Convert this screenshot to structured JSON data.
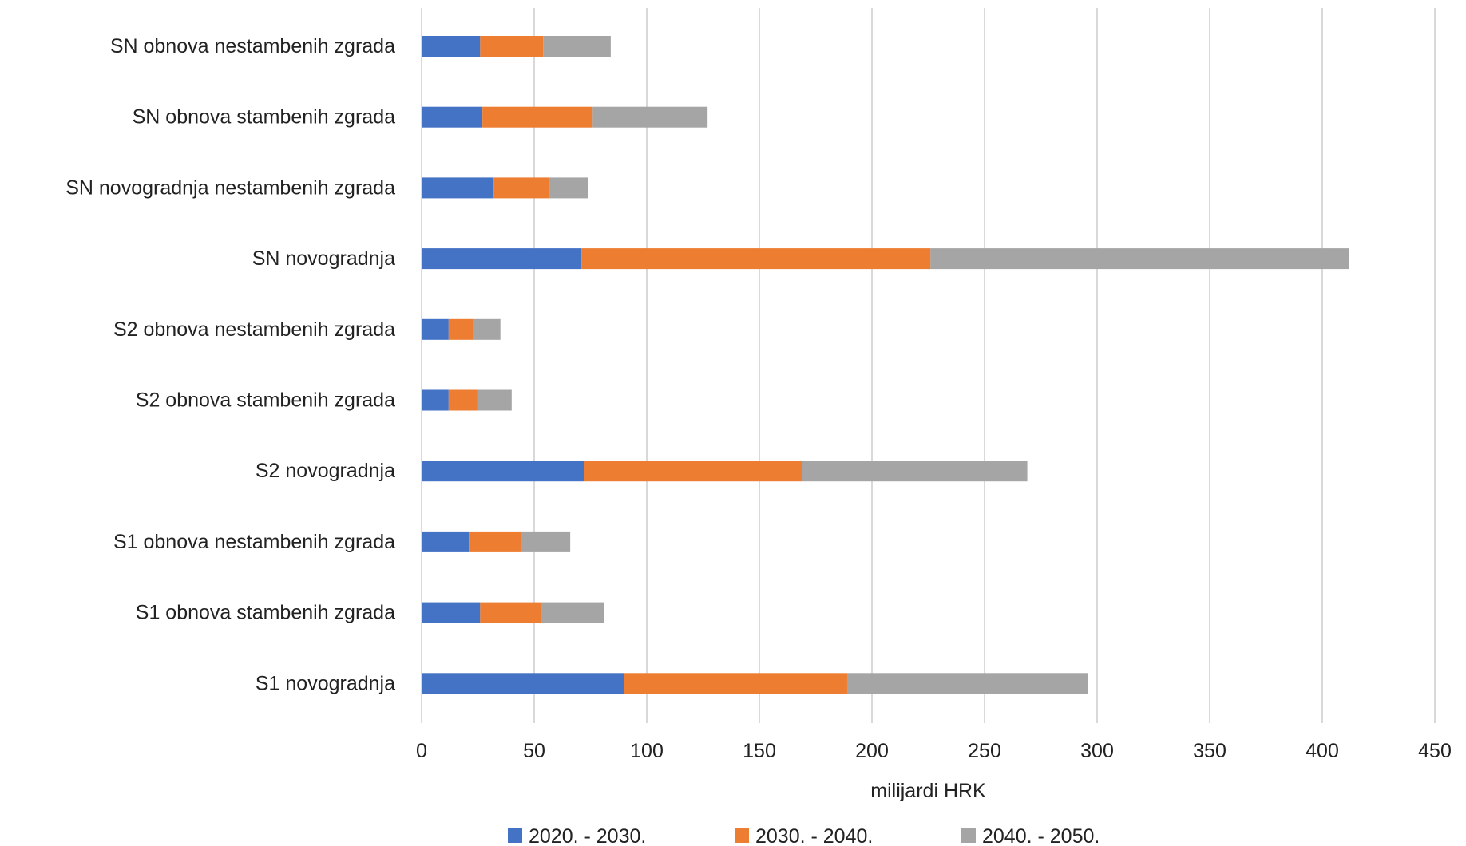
{
  "chart_data": {
    "type": "bar",
    "orientation": "horizontal",
    "stacked": true,
    "categories": [
      "SN obnova nestambenih zgrada",
      "SN obnova stambenih zgrada",
      "SN novogradnja nestambenih zgrada",
      "SN novogradnja",
      "S2 obnova nestambenih zgrada",
      "S2 obnova stambenih zgrada",
      "S2 novogradnja",
      "S1 obnova nestambenih zgrada",
      "S1 obnova stambenih zgrada",
      "S1 novogradnja"
    ],
    "series": [
      {
        "name": "2020. - 2030.",
        "color": "#4472c4",
        "values": [
          26,
          27,
          32,
          71,
          12,
          12,
          72,
          21,
          26,
          90
        ]
      },
      {
        "name": "2030. - 2040.",
        "color": "#ed7d31",
        "values": [
          28,
          49,
          25,
          155,
          11,
          13,
          97,
          23,
          27,
          99
        ]
      },
      {
        "name": "2040. - 2050.",
        "color": "#a5a5a5",
        "values": [
          30,
          51,
          17,
          186,
          12,
          15,
          100,
          22,
          28,
          107
        ]
      }
    ],
    "xlabel": "milijardi HRK",
    "ylabel": "",
    "xlim": [
      0,
      450
    ],
    "xticks": [
      "0",
      "50",
      "100",
      "150",
      "200",
      "250",
      "300",
      "350",
      "400",
      "450"
    ],
    "grid": true,
    "legend_position": "bottom"
  }
}
